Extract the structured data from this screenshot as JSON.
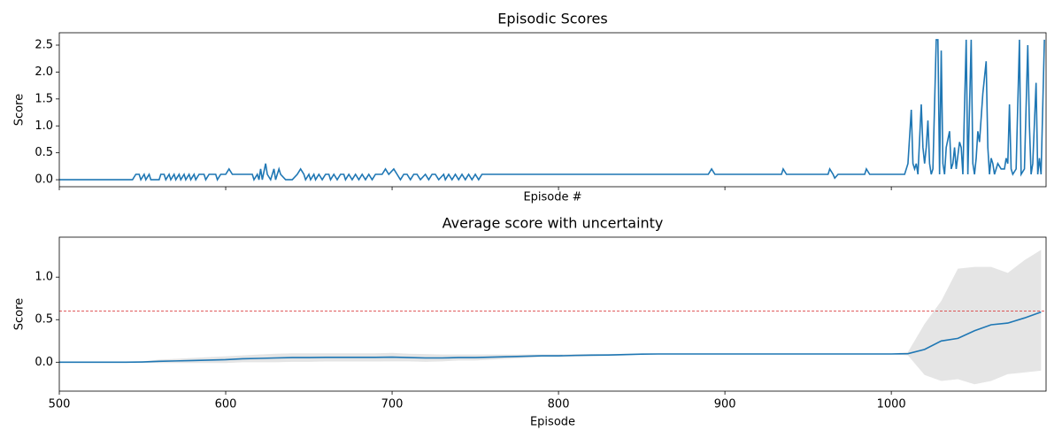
{
  "chart_data": [
    {
      "type": "line",
      "title": "Episodic Scores",
      "x_label": "Episode #",
      "y_label": "Score",
      "color": "#1f77b4",
      "x": [
        500,
        544,
        546,
        548,
        549,
        551,
        552,
        554,
        555,
        560,
        561,
        563,
        564,
        566,
        567,
        569,
        570,
        572,
        573,
        575,
        576,
        578,
        579,
        581,
        582,
        584,
        587,
        588,
        590,
        594,
        595,
        597,
        600,
        602,
        604,
        614,
        616,
        617,
        619,
        620,
        621,
        622,
        624,
        625,
        627,
        629,
        630,
        632,
        633,
        636,
        640,
        643,
        645,
        647,
        648,
        650,
        651,
        653,
        654,
        656,
        658,
        660,
        662,
        663,
        665,
        667,
        669,
        671,
        672,
        674,
        676,
        678,
        680,
        682,
        684,
        686,
        688,
        690,
        692,
        694,
        696,
        698,
        701,
        703,
        705,
        707,
        709,
        711,
        713,
        715,
        717,
        720,
        722,
        724,
        726,
        728,
        731,
        732,
        734,
        736,
        738,
        740,
        742,
        744,
        746,
        748,
        750,
        752,
        754,
        890,
        892,
        894,
        934,
        935,
        937,
        962,
        963,
        965,
        966,
        968,
        984,
        985,
        987,
        1008,
        1010,
        1012,
        1013,
        1014,
        1015,
        1016,
        1018,
        1019,
        1020,
        1021,
        1022,
        1023,
        1024,
        1025,
        1027,
        1028,
        1029,
        1030,
        1031,
        1032,
        1033,
        1035,
        1036,
        1037,
        1038,
        1039,
        1041,
        1042,
        1043,
        1045,
        1046,
        1048,
        1049,
        1050,
        1051,
        1052,
        1053,
        1055,
        1057,
        1058,
        1059,
        1060,
        1061,
        1062,
        1063,
        1064,
        1066,
        1068,
        1069,
        1070,
        1071,
        1072,
        1073,
        1075,
        1077,
        1078,
        1080,
        1082,
        1083,
        1084,
        1085,
        1087,
        1088,
        1089,
        1090,
        1092
      ],
      "values": [
        0,
        0,
        0.1,
        0.1,
        0,
        0.1,
        0,
        0.1,
        0,
        0,
        0.1,
        0.1,
        0,
        0.1,
        0,
        0.1,
        0,
        0.1,
        0,
        0.1,
        0,
        0.1,
        0,
        0.1,
        0,
        0.1,
        0.1,
        0,
        0.1,
        0.1,
        0,
        0.1,
        0.1,
        0.2,
        0.1,
        0.1,
        0.1,
        0,
        0.1,
        0,
        0.2,
        0,
        0.3,
        0.1,
        0,
        0.2,
        0,
        0.2,
        0.1,
        0,
        0,
        0.1,
        0.2,
        0.1,
        0,
        0.1,
        0,
        0.1,
        0,
        0.1,
        0,
        0.1,
        0.1,
        0,
        0.1,
        0,
        0.1,
        0.1,
        0,
        0.1,
        0,
        0.1,
        0,
        0.1,
        0,
        0.1,
        0,
        0.1,
        0.1,
        0.1,
        0.2,
        0.1,
        0.2,
        0.1,
        0,
        0.1,
        0.1,
        0,
        0.1,
        0.1,
        0,
        0.1,
        0,
        0.1,
        0.1,
        0,
        0.1,
        0,
        0.1,
        0,
        0.1,
        0,
        0.1,
        0,
        0.1,
        0,
        0.1,
        0,
        0.1,
        0.1,
        0.2,
        0.1,
        0.1,
        0.2,
        0.1,
        0.1,
        0.2,
        0.1,
        0.03,
        0.1,
        0.1,
        0.2,
        0.1,
        0.1,
        0.3,
        1.3,
        0.3,
        0.2,
        0.3,
        0.1,
        1.4,
        0.6,
        0.3,
        0.6,
        1.1,
        0.3,
        0.1,
        0.2,
        2.6,
        2.6,
        0.1,
        2.4,
        0.3,
        0.1,
        0.6,
        0.9,
        0.2,
        0.3,
        0.6,
        0.2,
        0.7,
        0.6,
        0.1,
        2.6,
        0.1,
        2.6,
        0.3,
        0.1,
        0.4,
        0.9,
        0.7,
        1.6,
        2.2,
        0.6,
        0.1,
        0.4,
        0.3,
        0.1,
        0.2,
        0.3,
        0.2,
        0.2,
        0.4,
        0.3,
        1.4,
        0.2,
        0.1,
        0.2,
        2.6,
        0.1,
        0.2,
        2.5,
        1.0,
        0.1,
        0.3,
        1.8,
        0.1,
        0.4,
        0.1,
        2.6
      ],
      "xlim": [
        500,
        1093
      ],
      "xticks": [
        500,
        600,
        700,
        800,
        900,
        1000
      ],
      "ylim": [
        -0.13,
        2.73
      ],
      "yticks": [
        {
          "value": 0,
          "label": "0.0"
        },
        0.5,
        {
          "value": 1,
          "label": "1.0"
        },
        1.5,
        {
          "value": 2,
          "label": "2.0"
        },
        2.5
      ]
    },
    {
      "type": "band",
      "title": "Average score with uncertainty",
      "x_label": "Episode",
      "y_label": "Score",
      "color": "#1f77b4",
      "band_color": "#e5e5e5",
      "x": [
        500,
        510,
        520,
        530,
        540,
        550,
        560,
        570,
        580,
        590,
        600,
        610,
        620,
        630,
        640,
        650,
        660,
        670,
        680,
        690,
        700,
        710,
        720,
        730,
        740,
        750,
        760,
        770,
        780,
        790,
        800,
        810,
        820,
        830,
        840,
        850,
        860,
        870,
        880,
        890,
        900,
        910,
        920,
        930,
        940,
        950,
        960,
        970,
        980,
        990,
        1000,
        1010,
        1020,
        1030,
        1040,
        1050,
        1060,
        1070,
        1080,
        1090
      ],
      "values": [
        0,
        0,
        0,
        0,
        0,
        0.003,
        0.01,
        0.015,
        0.02,
        0.025,
        0.03,
        0.04,
        0.045,
        0.05,
        0.055,
        0.055,
        0.057,
        0.057,
        0.057,
        0.057,
        0.06,
        0.055,
        0.05,
        0.05,
        0.055,
        0.055,
        0.06,
        0.065,
        0.07,
        0.075,
        0.075,
        0.08,
        0.083,
        0.085,
        0.09,
        0.095,
        0.097,
        0.097,
        0.097,
        0.097,
        0.097,
        0.097,
        0.097,
        0.097,
        0.097,
        0.097,
        0.097,
        0.097,
        0.097,
        0.097,
        0.097,
        0.1,
        0.15,
        0.25,
        0.28,
        0.37,
        0.44,
        0.46,
        0.52,
        0.59
      ],
      "upper": [
        0,
        0,
        0,
        0,
        0,
        0.01,
        0.03,
        0.04,
        0.05,
        0.06,
        0.07,
        0.08,
        0.09,
        0.1,
        0.105,
        0.105,
        0.105,
        0.105,
        0.105,
        0.105,
        0.11,
        0.1,
        0.095,
        0.09,
        0.09,
        0.09,
        0.09,
        0.09,
        0.09,
        0.09,
        0.09,
        0.095,
        0.095,
        0.095,
        0.1,
        0.1,
        0.1,
        0.1,
        0.1,
        0.1,
        0.1,
        0.1,
        0.1,
        0.1,
        0.1,
        0.1,
        0.1,
        0.1,
        0.1,
        0.1,
        0.1,
        0.12,
        0.45,
        0.72,
        1.1,
        1.12,
        1.12,
        1.05,
        1.2,
        1.32
      ],
      "lower": [
        0,
        0,
        0,
        0,
        0,
        -0.004,
        -0.01,
        -0.01,
        -0.01,
        -0.01,
        -0.01,
        0,
        0,
        0,
        0.005,
        0.005,
        0.009,
        0.009,
        0.009,
        0.009,
        0.01,
        0.01,
        0.005,
        0.01,
        0.02,
        0.02,
        0.03,
        0.04,
        0.05,
        0.06,
        0.06,
        0.065,
        0.07,
        0.075,
        0.08,
        0.09,
        0.094,
        0.094,
        0.094,
        0.094,
        0.094,
        0.094,
        0.094,
        0.094,
        0.094,
        0.094,
        0.094,
        0.094,
        0.094,
        0.094,
        0.094,
        0.08,
        -0.15,
        -0.22,
        -0.2,
        -0.26,
        -0.22,
        -0.14,
        -0.12,
        -0.1
      ],
      "hline": 0.6,
      "hline_color": "#d62728",
      "xlim": [
        500,
        1093
      ],
      "xticks": [
        500,
        600,
        700,
        800,
        900,
        1000
      ],
      "ylim": [
        -0.34,
        1.47
      ],
      "yticks": [
        {
          "value": 0,
          "label": "0.0"
        },
        0.5,
        {
          "value": 1,
          "label": "1.0"
        }
      ]
    }
  ]
}
